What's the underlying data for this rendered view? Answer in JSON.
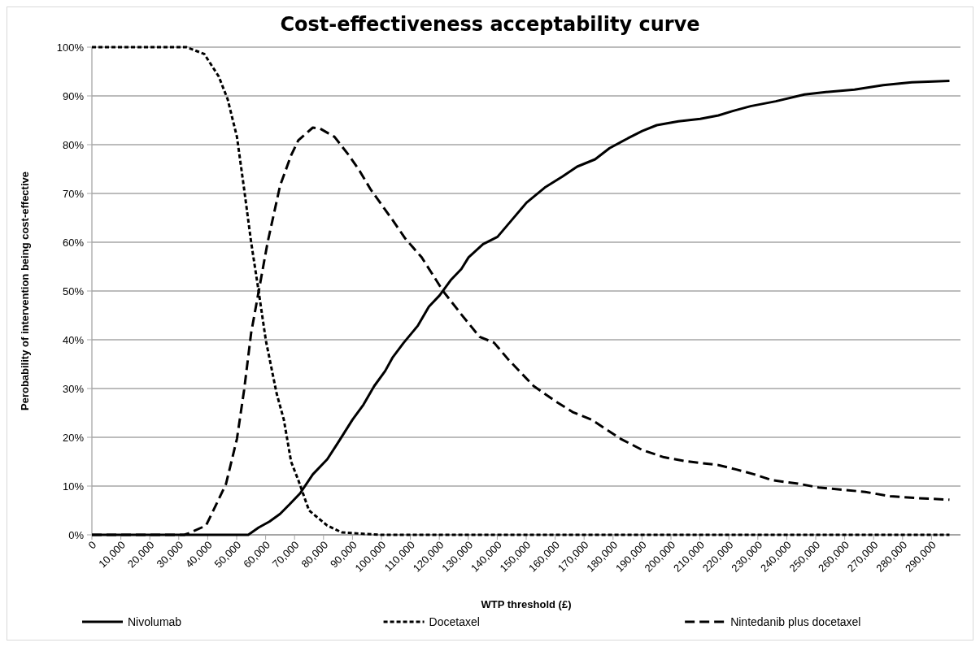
{
  "chart_data": {
    "type": "line",
    "title": "Cost-effectiveness acceptability curve",
    "xlabel": "WTP threshold (£)",
    "ylabel": "Perobability of intervention being cost-effective",
    "xlim": [
      0,
      300000
    ],
    "xticks": [
      {
        "value": 0,
        "label": "0"
      },
      {
        "value": 10000,
        "label": "10,000"
      },
      {
        "value": 20000,
        "label": "20,000"
      },
      {
        "value": 30000,
        "label": "30,000"
      },
      {
        "value": 40000,
        "label": "40,000"
      },
      {
        "value": 50000,
        "label": "50,000"
      },
      {
        "value": 60000,
        "label": "60,000"
      },
      {
        "value": 70000,
        "label": "70,000"
      },
      {
        "value": 80000,
        "label": "80,000"
      },
      {
        "value": 90000,
        "label": "90,000"
      },
      {
        "value": 100000,
        "label": "100,000"
      },
      {
        "value": 110000,
        "label": "110,000"
      },
      {
        "value": 120000,
        "label": "120,000"
      },
      {
        "value": 130000,
        "label": "130,000"
      },
      {
        "value": 140000,
        "label": "140,000"
      },
      {
        "value": 150000,
        "label": "150,000"
      },
      {
        "value": 160000,
        "label": "160,000"
      },
      {
        "value": 170000,
        "label": "170,000"
      },
      {
        "value": 180000,
        "label": "180,000"
      },
      {
        "value": 190000,
        "label": "190,000"
      },
      {
        "value": 200000,
        "label": "200,000"
      },
      {
        "value": 210000,
        "label": "210,000"
      },
      {
        "value": 220000,
        "label": "220,000"
      },
      {
        "value": 230000,
        "label": "230,000"
      },
      {
        "value": 240000,
        "label": "240,000"
      },
      {
        "value": 250000,
        "label": "250,000"
      },
      {
        "value": 260000,
        "label": "260,000"
      },
      {
        "value": 270000,
        "label": "270,000"
      },
      {
        "value": 280000,
        "label": "280,000"
      },
      {
        "value": 290000,
        "label": "290,000"
      }
    ],
    "ylim": [
      0,
      100
    ],
    "yticks": [
      {
        "value": 0,
        "label": "0%"
      },
      {
        "value": 10,
        "label": "10%"
      },
      {
        "value": 20,
        "label": "20%"
      },
      {
        "value": 30,
        "label": "30%"
      },
      {
        "value": 40,
        "label": "40%"
      },
      {
        "value": 50,
        "label": "50%"
      },
      {
        "value": 60,
        "label": "60%"
      },
      {
        "value": 70,
        "label": "70%"
      },
      {
        "value": 80,
        "label": "80%"
      },
      {
        "value": 90,
        "label": "90%"
      },
      {
        "value": 100,
        "label": "100%"
      }
    ],
    "grid": "y",
    "legend": "bottom",
    "marker": "none",
    "series": [
      {
        "name": "Nivolumab",
        "color": "#000000",
        "line_style": "solid",
        "x": [
          0,
          54000,
          57600,
          61300,
          65000,
          68200,
          71900,
          76300,
          81300,
          85000,
          90000,
          93800,
          97500,
          101300,
          103800,
          107700,
          112600,
          116400,
          120100,
          123900,
          127600,
          130100,
          135100,
          140100,
          145100,
          150100,
          156400,
          162600,
          167600,
          173800,
          178800,
          185100,
          190100,
          195100,
          202600,
          210100,
          216400,
          221300,
          227500,
          236200,
          246100,
          253500,
          263400,
          273300,
          283200,
          296200
        ],
        "values": [
          0,
          0,
          1.5,
          2.7,
          4.3,
          6.2,
          8.5,
          12.4,
          15.5,
          18.9,
          23.6,
          26.7,
          30.5,
          33.6,
          36.3,
          39.4,
          42.9,
          46.8,
          49.1,
          52.2,
          54.5,
          56.9,
          59.6,
          61.1,
          64.6,
          68.1,
          71.2,
          73.5,
          75.5,
          77,
          79.3,
          81.3,
          82.8,
          84,
          84.8,
          85.3,
          86,
          86.9,
          87.9,
          88.9,
          90.3,
          90.8,
          91.3,
          92.2,
          92.8,
          93.1
        ]
      },
      {
        "name": "Docetaxel",
        "color": "#000000",
        "line_style": "dotted",
        "x": [
          0,
          32600,
          38800,
          43800,
          46900,
          50100,
          52600,
          55000,
          57600,
          60100,
          63800,
          66300,
          68800,
          71300,
          75000,
          81300,
          86300,
          93800,
          100000,
          296200
        ],
        "values": [
          100,
          100,
          98.6,
          94,
          89.3,
          81.6,
          70.8,
          60,
          49.9,
          39.8,
          29,
          23.6,
          15,
          11.2,
          5,
          1.9,
          0.5,
          0.2,
          0,
          0
        ]
      },
      {
        "name": "Nintedanib plus docetaxel",
        "color": "#000000",
        "line_style": "dashed",
        "x": [
          0,
          31900,
          33800,
          39400,
          42600,
          46300,
          50100,
          52600,
          55000,
          57600,
          60700,
          65000,
          68800,
          71300,
          76300,
          78800,
          83800,
          88800,
          92500,
          96300,
          103800,
          108300,
          113900,
          121400,
          127600,
          133900,
          138900,
          143900,
          152600,
          160100,
          166300,
          172600,
          182600,
          190100,
          197600,
          205000,
          216400,
          222600,
          228800,
          235000,
          243900,
          251000,
          258400,
          267100,
          275800,
          285700,
          296200
        ],
        "values": [
          0,
          0,
          0.4,
          1.9,
          5.8,
          10.4,
          19.7,
          29.8,
          41.4,
          49.9,
          60,
          71.6,
          77.8,
          80.9,
          83.5,
          83.3,
          81.6,
          77.8,
          74.6,
          70.8,
          64.6,
          60.7,
          56.9,
          49.9,
          45.2,
          40.6,
          39.4,
          35.9,
          30.5,
          27.4,
          25.1,
          23.6,
          19.7,
          17.4,
          15.9,
          15.1,
          14.3,
          13.4,
          12.4,
          11.2,
          10.5,
          9.7,
          9.3,
          8.8,
          7.9,
          7.5,
          7.2
        ]
      }
    ]
  }
}
